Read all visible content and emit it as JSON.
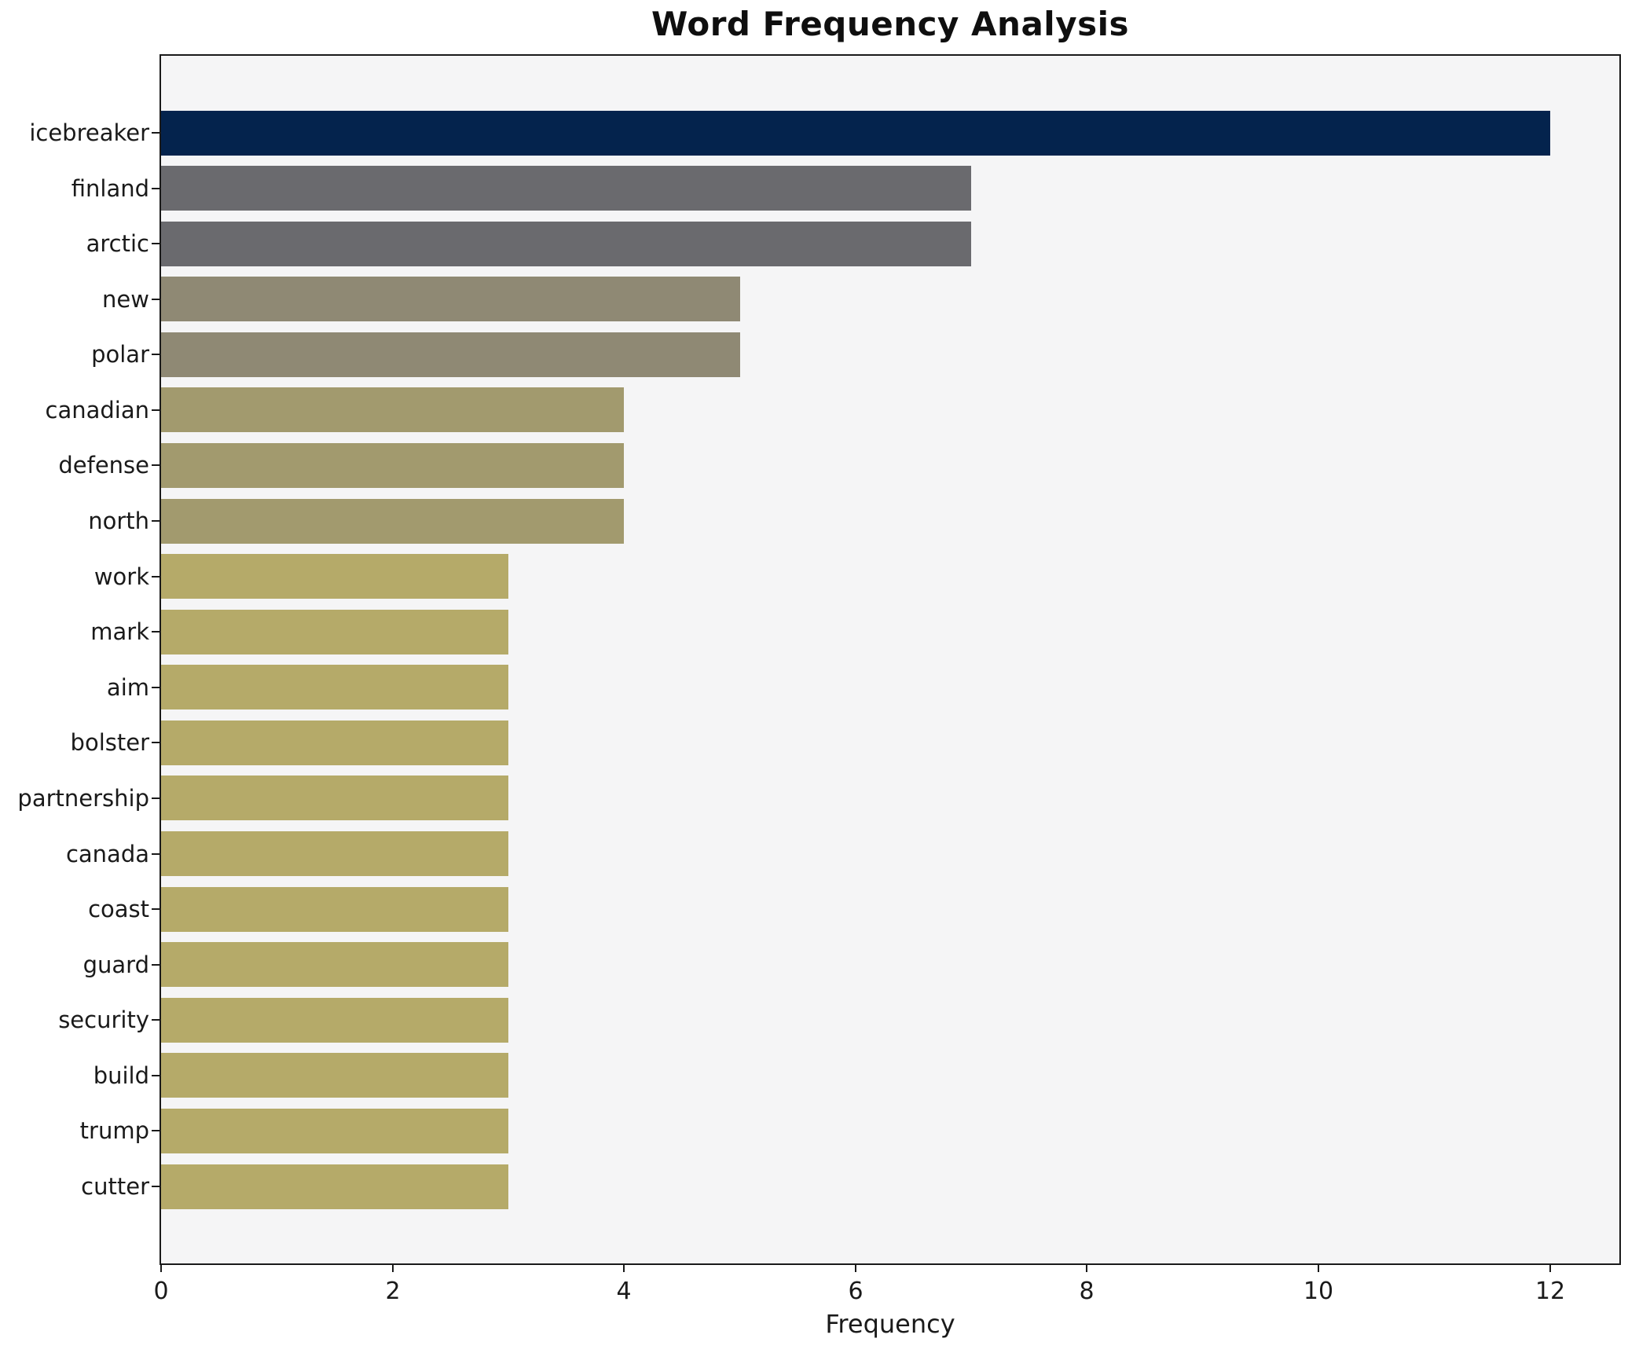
{
  "chart": {
    "title": "Word Frequency Analysis",
    "xlabel": "Frequency"
  },
  "chart_data": {
    "type": "bar",
    "orientation": "horizontal",
    "title": "Word Frequency Analysis",
    "xlabel": "Frequency",
    "ylabel": "",
    "categories": [
      "icebreaker",
      "finland",
      "arctic",
      "new",
      "polar",
      "canadian",
      "defense",
      "north",
      "work",
      "mark",
      "aim",
      "bolster",
      "partnership",
      "canada",
      "coast",
      "guard",
      "security",
      "build",
      "trump",
      "cutter"
    ],
    "values": [
      12,
      7,
      7,
      5,
      5,
      4,
      4,
      4,
      3,
      3,
      3,
      3,
      3,
      3,
      3,
      3,
      3,
      3,
      3,
      3
    ],
    "bar_colors": [
      "#04234d",
      "#6a6a6e",
      "#6a6a6e",
      "#8f8974",
      "#8f8974",
      "#a29a6e",
      "#a29a6e",
      "#a29a6e",
      "#b5aa69",
      "#b5aa69",
      "#b5aa69",
      "#b5aa69",
      "#b5aa69",
      "#b5aa69",
      "#b5aa69",
      "#b5aa69",
      "#b5aa69",
      "#b5aa69",
      "#b5aa69",
      "#b5aa69"
    ],
    "x_ticks": [
      0,
      2,
      4,
      6,
      8,
      10,
      12
    ],
    "xlim": [
      0,
      12.6
    ],
    "grid": false,
    "legend": null,
    "plot_background": "#f5f5f6",
    "figure_background": "#ffffff",
    "axis_color": "#1a1a1a"
  }
}
